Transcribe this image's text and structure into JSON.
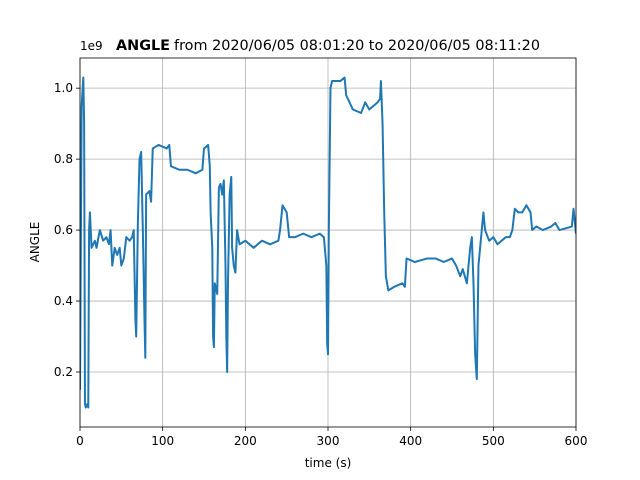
{
  "chart_data": {
    "type": "line",
    "title_bold": "ANGLE",
    "title": "from 2020/06/05 08:01:20 to 2020/06/05 08:11:20",
    "x_label": "time (s)",
    "y_label": "ANGLE",
    "y_offset_label": "1e9",
    "xlim": [
      0,
      600
    ],
    "xticks": [
      0,
      100,
      200,
      300,
      400,
      500,
      600
    ],
    "ylim": [
      0.045,
      1.085
    ],
    "yticks": [
      0.2,
      0.4,
      0.6,
      0.8,
      {
        "value": 1.0,
        "label": "1.0"
      }
    ],
    "grid": true,
    "series": [
      {
        "name": "ANGLE",
        "color": "#1f77b4",
        "x": [
          0,
          2,
          4,
          5,
          6,
          7,
          9,
          10,
          11,
          12,
          14,
          18,
          20,
          24,
          28,
          32,
          35,
          37,
          39,
          42,
          45,
          48,
          50,
          53,
          56,
          60,
          63,
          65,
          67,
          68,
          70,
          72,
          74,
          76,
          78,
          79,
          80,
          84,
          86,
          88,
          95,
          105,
          108,
          110,
          120,
          130,
          140,
          148,
          150,
          155,
          157,
          158,
          160,
          161,
          162,
          163,
          166,
          168,
          170,
          172,
          174,
          176,
          177,
          178,
          179,
          181,
          183,
          184,
          186,
          188,
          190,
          193,
          200,
          210,
          220,
          230,
          240,
          242,
          245,
          250,
          253,
          260,
          270,
          280,
          290,
          295,
          298,
          299,
          300,
          301,
          303,
          305,
          315,
          320,
          322,
          330,
          340,
          345,
          350,
          355,
          360,
          363,
          364,
          366,
          368,
          370,
          373,
          380,
          390,
          393,
          395,
          405,
          420,
          430,
          440,
          450,
          455,
          460,
          463,
          468,
          470,
          472,
          474,
          476,
          478,
          480,
          482,
          484,
          486,
          488,
          490,
          495,
          500,
          505,
          510,
          515,
          520,
          523,
          526,
          530,
          535,
          540,
          545,
          547,
          552,
          560,
          570,
          575,
          580,
          595,
          597,
          600
        ],
        "values": [
          0.15,
          0.95,
          1.03,
          0.9,
          0.11,
          0.1,
          0.11,
          0.1,
          0.6,
          0.65,
          0.55,
          0.57,
          0.55,
          0.6,
          0.57,
          0.58,
          0.56,
          0.6,
          0.5,
          0.55,
          0.53,
          0.55,
          0.5,
          0.52,
          0.58,
          0.57,
          0.58,
          0.6,
          0.35,
          0.3,
          0.62,
          0.8,
          0.82,
          0.6,
          0.35,
          0.24,
          0.7,
          0.71,
          0.68,
          0.83,
          0.84,
          0.83,
          0.84,
          0.78,
          0.77,
          0.77,
          0.76,
          0.77,
          0.83,
          0.84,
          0.78,
          0.65,
          0.55,
          0.3,
          0.27,
          0.45,
          0.42,
          0.72,
          0.73,
          0.7,
          0.74,
          0.5,
          0.3,
          0.2,
          0.45,
          0.7,
          0.75,
          0.55,
          0.5,
          0.48,
          0.6,
          0.56,
          0.57,
          0.55,
          0.57,
          0.56,
          0.57,
          0.6,
          0.67,
          0.65,
          0.58,
          0.58,
          0.59,
          0.58,
          0.59,
          0.58,
          0.5,
          0.28,
          0.25,
          0.6,
          1.0,
          1.02,
          1.02,
          1.03,
          0.98,
          0.94,
          0.93,
          0.96,
          0.94,
          0.95,
          0.96,
          0.97,
          1.02,
          0.9,
          0.65,
          0.47,
          0.43,
          0.44,
          0.45,
          0.44,
          0.52,
          0.51,
          0.52,
          0.52,
          0.51,
          0.52,
          0.5,
          0.47,
          0.49,
          0.45,
          0.5,
          0.55,
          0.58,
          0.45,
          0.25,
          0.18,
          0.5,
          0.55,
          0.6,
          0.65,
          0.6,
          0.57,
          0.58,
          0.56,
          0.57,
          0.58,
          0.58,
          0.6,
          0.66,
          0.65,
          0.65,
          0.67,
          0.65,
          0.6,
          0.61,
          0.6,
          0.61,
          0.62,
          0.6,
          0.61,
          0.66,
          0.59
        ]
      }
    ]
  }
}
